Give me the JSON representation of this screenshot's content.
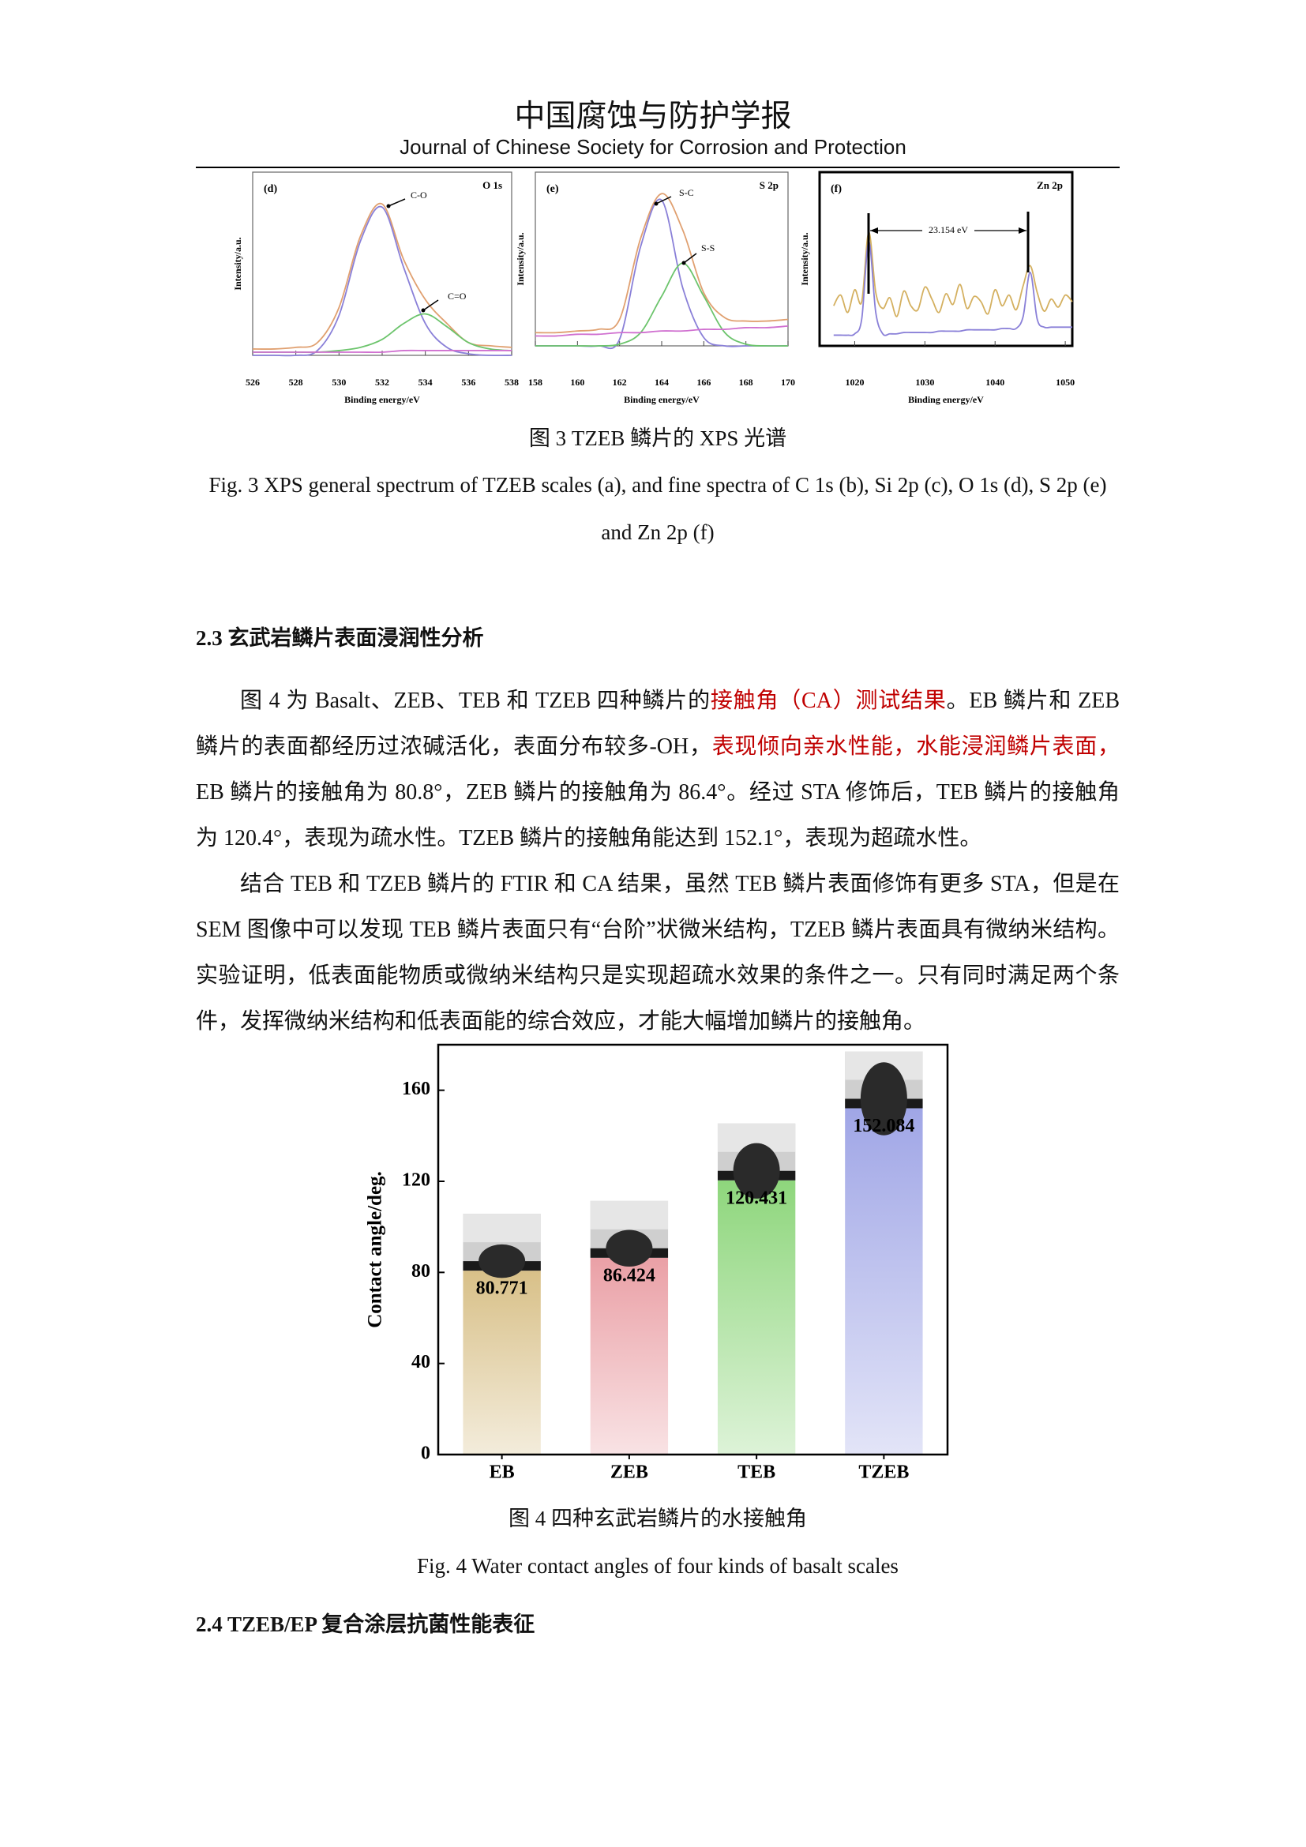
{
  "header": {
    "title": "中国腐蚀与防护学报",
    "subtitle": "Journal of Chinese Society for Corrosion and Protection"
  },
  "figure3": {
    "panels": [
      {
        "type": "line",
        "label": "(d)",
        "corner": "O 1s",
        "xlabel": "Binding energy/eV",
        "ylabel": "Intensity/a.u.",
        "x": [
          526,
          527,
          528,
          529,
          530,
          531,
          532,
          533,
          534,
          535,
          536,
          537,
          538
        ],
        "xlim": [
          526,
          538
        ],
        "ylim": [
          0,
          115
        ],
        "xticks": [
          526,
          528,
          530,
          532,
          534,
          536,
          538
        ],
        "series": [
          {
            "color": "#e0a070",
            "values": [
              4,
              4,
              5,
              8,
              30,
              75,
              95,
              60,
              35,
              20,
              8,
              6,
              5
            ]
          },
          {
            "name": "C-O",
            "color": "#8a80d8",
            "values": [
              0,
              0,
              0,
              3,
              25,
              72,
              93,
              55,
              20,
              5,
              1,
              0,
              0
            ]
          },
          {
            "name": "C=O",
            "color": "#6cc46c",
            "values": [
              2,
              2,
              2,
              2,
              3,
              5,
              10,
              20,
              26,
              18,
              8,
              4,
              3
            ]
          },
          {
            "color": "#d070d0",
            "values": [
              2,
              2,
              2,
              2,
              2,
              2,
              2,
              3,
              3,
              3,
              3,
              3,
              3
            ]
          }
        ]
      },
      {
        "type": "line",
        "label": "(e)",
        "corner": "S 2p",
        "xlabel": "Binding energy/eV",
        "ylabel": "Intensity/a.u.",
        "x": [
          158,
          159,
          160,
          161,
          162,
          163,
          164,
          165,
          166,
          167,
          168,
          169,
          170
        ],
        "xlim": [
          158,
          170
        ],
        "ylim": [
          0,
          105
        ],
        "xticks": [
          158,
          160,
          162,
          164,
          166,
          168,
          170
        ],
        "series": [
          {
            "color": "#e0a070",
            "values": [
              8,
              8,
              9,
              10,
              16,
              65,
              92,
              70,
              32,
              17,
              15,
              15,
              16
            ]
          },
          {
            "name": "S-C",
            "color": "#8a80d8",
            "values": [
              0,
              0,
              0,
              0,
              4,
              60,
              88,
              35,
              5,
              0,
              0,
              0,
              0
            ]
          },
          {
            "name": "S-S",
            "color": "#6cc46c",
            "values": [
              0,
              0,
              0,
              0,
              1,
              8,
              30,
              50,
              30,
              8,
              1,
              0,
              0
            ]
          },
          {
            "color": "#d070d0",
            "values": [
              6,
              6,
              7,
              7,
              8,
              8,
              9,
              9,
              10,
              10,
              11,
              11,
              12
            ]
          }
        ]
      },
      {
        "type": "line",
        "label": "(f)",
        "corner": "Zn 2p",
        "xlabel": "Binding energy/eV",
        "ylabel": "Intensity/a.u.",
        "annotation": "23.154 eV",
        "x": [
          1017,
          1018,
          1019,
          1020,
          1021,
          1022,
          1023,
          1024,
          1025,
          1026,
          1027,
          1028,
          1029,
          1030,
          1031,
          1032,
          1033,
          1034,
          1035,
          1036,
          1037,
          1038,
          1039,
          1040,
          1041,
          1042,
          1043,
          1044,
          1045,
          1046,
          1047,
          1048,
          1049,
          1050,
          1051
        ],
        "xlim": [
          1015,
          1051
        ],
        "ylim": [
          0,
          130
        ],
        "xticks": [
          1020,
          1030,
          1040,
          1050
        ],
        "series": [
          {
            "color": "#d4b060",
            "values": [
              30,
              38,
              25,
              42,
              33,
              85,
              40,
              28,
              36,
              22,
              41,
              30,
              27,
              44,
              35,
              25,
              39,
              31,
              46,
              28,
              37,
              33,
              24,
              42,
              30,
              38,
              27,
              45,
              60,
              40,
              26,
              35,
              29,
              38,
              33
            ]
          },
          {
            "color": "#8a80d8",
            "values": [
              8,
              8,
              8,
              9,
              20,
              78,
              25,
              9,
              9,
              9,
              10,
              10,
              10,
              10,
              10,
              11,
              11,
              11,
              11,
              12,
              12,
              12,
              12,
              12,
              13,
              13,
              13,
              22,
              55,
              20,
              14,
              14,
              14,
              14,
              14
            ]
          }
        ]
      }
    ],
    "caption_cn": "图 3 TZEB 鳞片的 XPS 光谱",
    "caption_en": "Fig. 3 XPS general spectrum of TZEB scales (a), and fine spectra of C 1s (b), Si 2p (c), O 1s (d), S 2p (e) and Zn 2p (f)"
  },
  "heading1": "2.3 玄武岩鳞片表面浸润性分析",
  "paragraphs": [
    {
      "segments": [
        {
          "text": "图 4 为 Basalt、ZEB、TEB 和 TZEB 四种鳞片的"
        },
        {
          "text": "接触角（CA）测试结果",
          "color": "#c00000"
        },
        {
          "text": "。EB 鳞片和 ZEB 鳞片的表面都经历过浓碱活化，表面分布较多-OH，"
        },
        {
          "text": "表现倾向亲水性能，水能浸润鳞片表面，",
          "color": "#c00000"
        },
        {
          "text": "EB 鳞片的接触角为 80.8°，ZEB 鳞片的接触角为 86.4°。经过 STA 修饰后，TEB 鳞片的接触角为 120.4°，表现为疏水性。TZEB 鳞片的接触角能达到 152.1°，表现为超疏水性。"
        }
      ]
    },
    {
      "segments": [
        {
          "text": "结合 TEB 和 TZEB 鳞片的 FTIR 和 CA 结果，虽然 TEB 鳞片表面修饰有更多 STA，但是在 SEM 图像中可以发现 TEB 鳞片表面只有“台阶”状微米结构，TZEB 鳞片表面具有微纳米结构。实验证明，低表面能物质或微纳米结构只是实现超疏水效果的条件之一。只有同时满足两个条件，发挥微纳米结构和低表面能的综合效应，才能大幅增加鳞片的接触角。"
        }
      ]
    }
  ],
  "figure4": {
    "chart_data": {
      "type": "bar",
      "ylabel": "Contact angle/deg.",
      "categories": [
        "EB",
        "ZEB",
        "TEB",
        "TZEB"
      ],
      "values": [
        80.771,
        86.424,
        120.431,
        152.084
      ],
      "colors": [
        "#d8c088",
        "#eaa0a6",
        "#8ed67c",
        "#a0a6e6"
      ],
      "ylim": [
        0,
        180
      ],
      "yticks": [
        0,
        40,
        80,
        120,
        160
      ]
    },
    "caption_cn": "图 4 四种玄武岩鳞片的水接触角",
    "caption_en": "Fig. 4 Water contact angles of four kinds of basalt scales"
  },
  "heading2": "2.4 TZEB/EP 复合涂层抗菌性能表征"
}
